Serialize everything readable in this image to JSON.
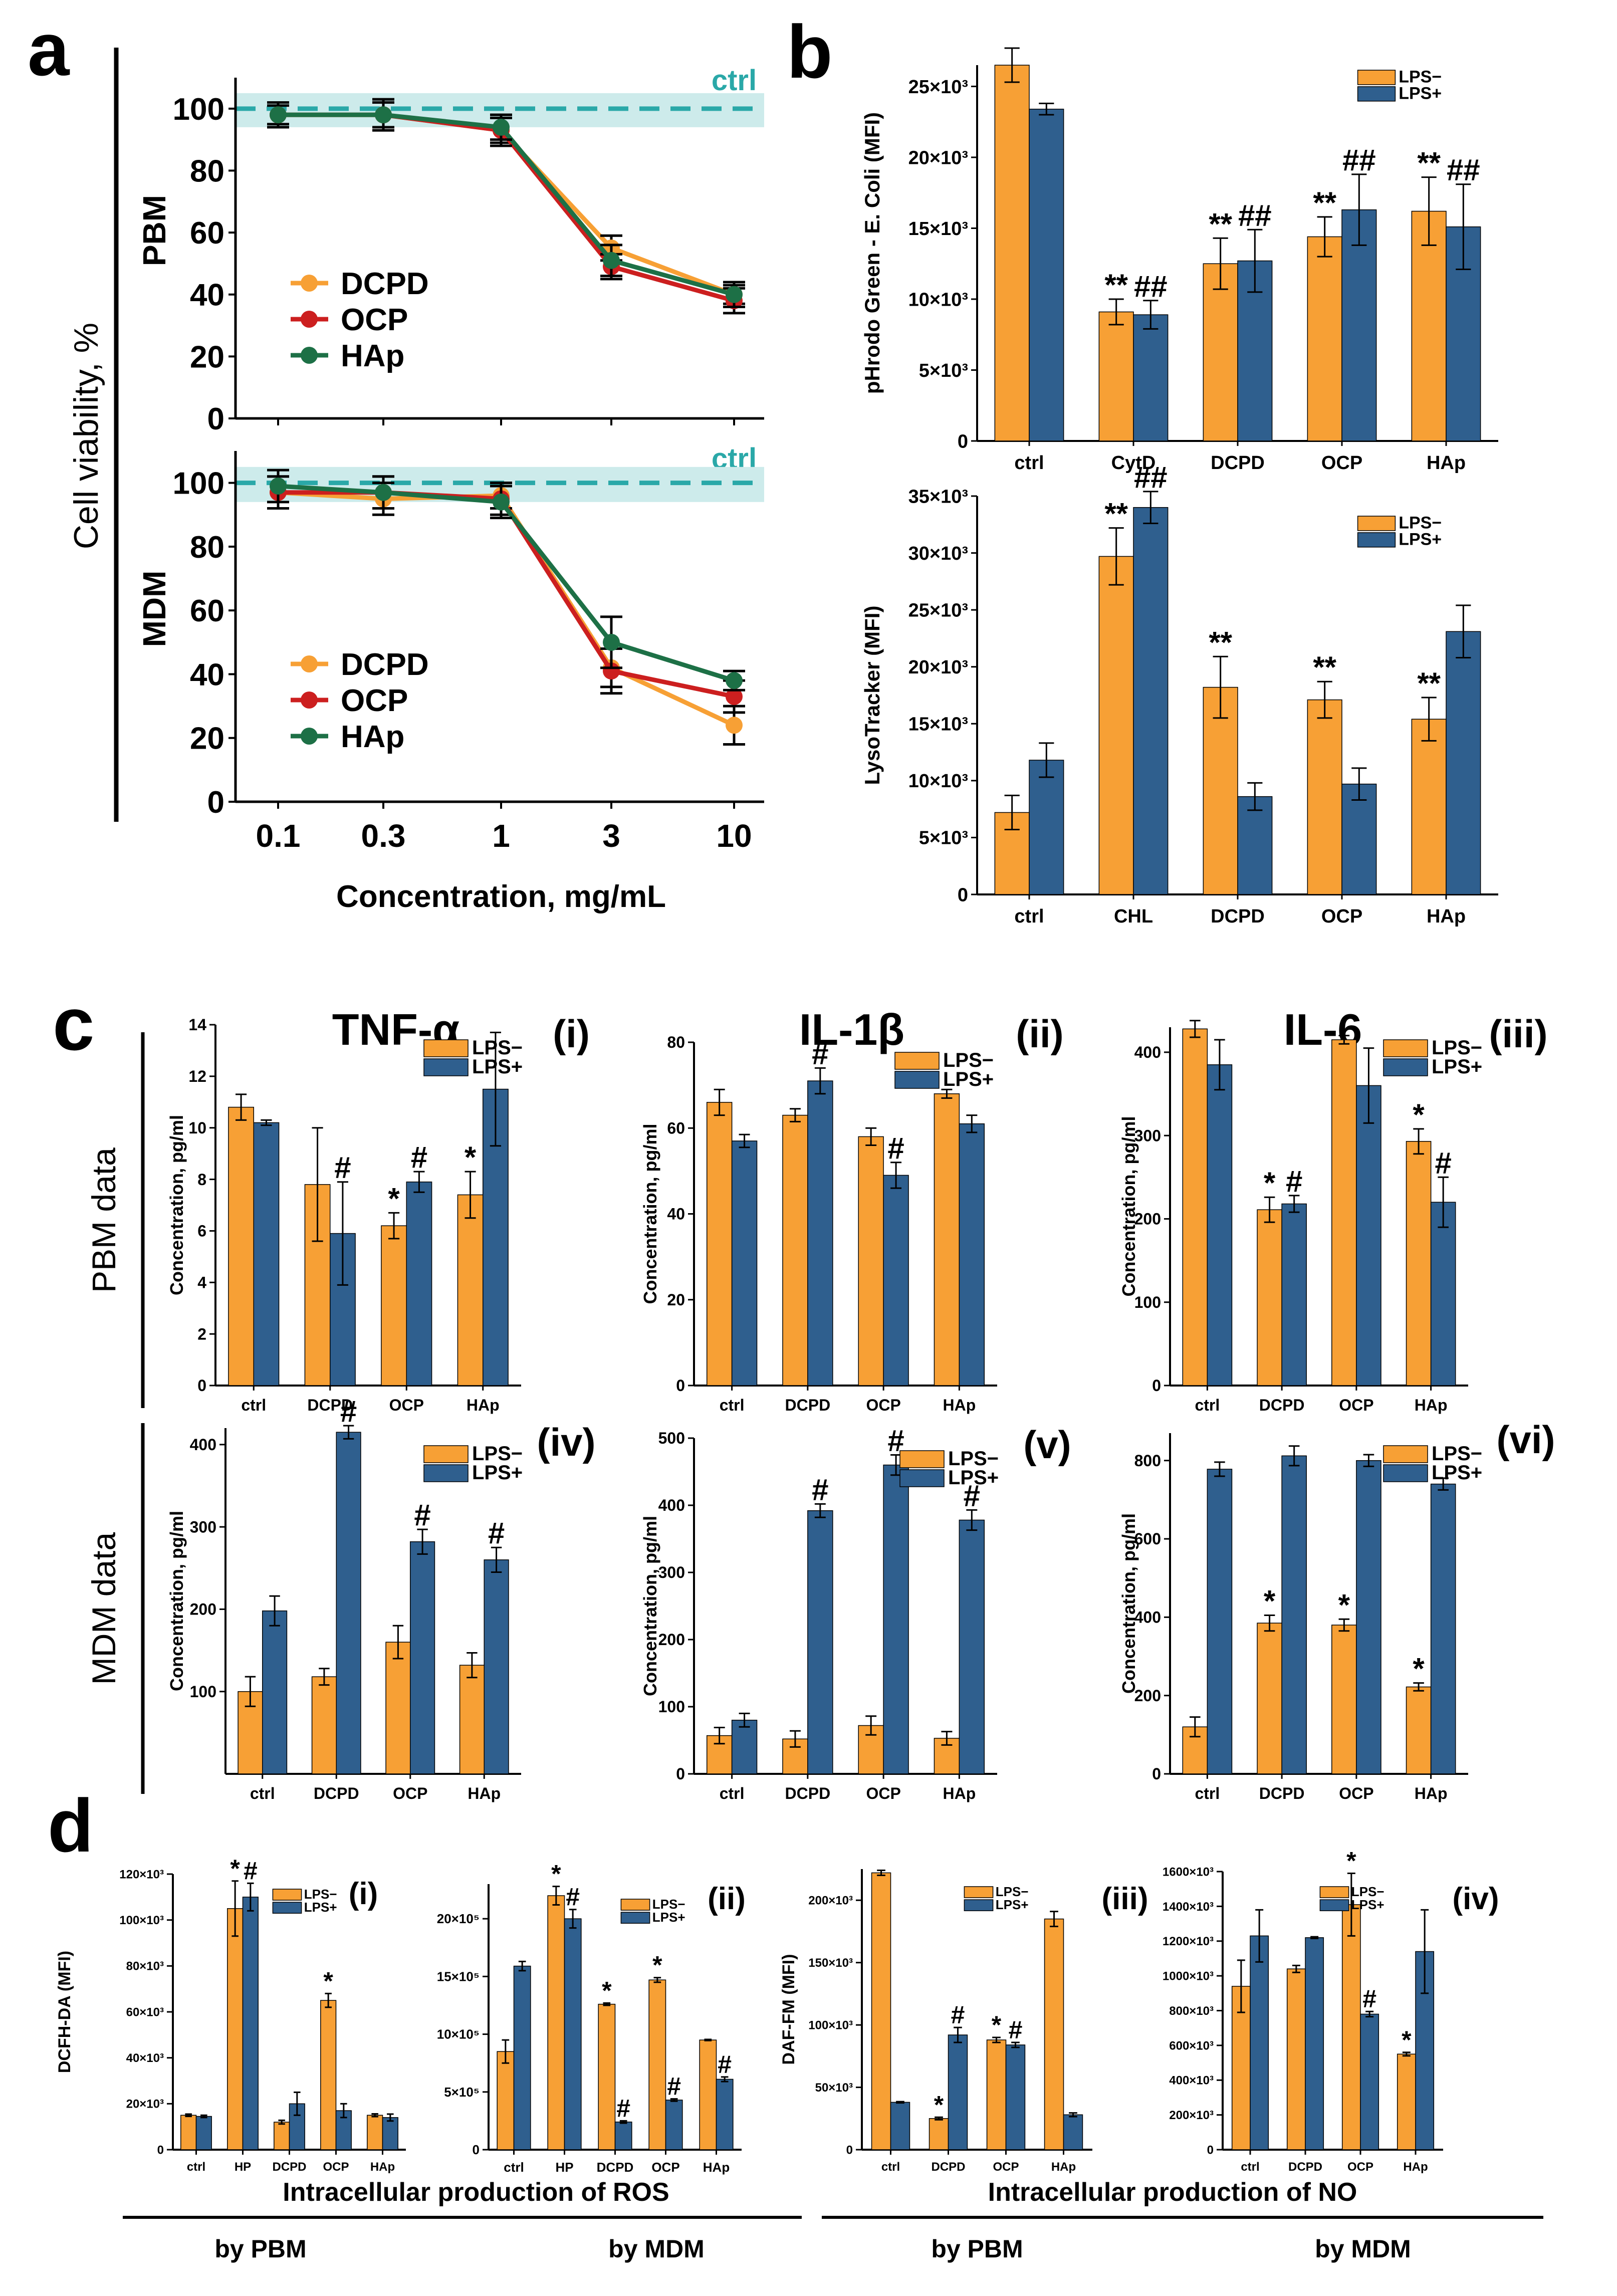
{
  "colors": {
    "orange": "#F7A035",
    "blue": "#2F5F8E",
    "red": "#CC1F1F",
    "green": "#1D7046",
    "teal": "#2AA8A8",
    "band": "#CDEBEB",
    "axis": "#000000"
  },
  "panel_labels": {
    "a": "a",
    "b": "b",
    "c": "c",
    "d": "d"
  },
  "panel_a": {
    "ylabel": "Cell viability, %",
    "xlabel": "Concentration, mg/mL",
    "ctrl_label": "ctrl",
    "x_ticks": [
      "0.1",
      "0.3",
      "1",
      "3",
      "10"
    ],
    "y_ticks": [
      "0",
      "20",
      "40",
      "60",
      "80",
      "100"
    ],
    "rows": [
      {
        "name": "PBM",
        "legend": [
          "DCPD",
          "OCP",
          "HAp"
        ]
      },
      {
        "name": "MDM",
        "legend": [
          "DCPD",
          "OCP",
          "HAp"
        ]
      }
    ]
  },
  "panel_c": {
    "titles": [
      "TNF-α",
      "IL-1β",
      "IL-6"
    ],
    "row_labels": [
      "PBM data",
      "MDM data"
    ]
  },
  "panel_d": {
    "captions": [
      "Intracellular production of ROS",
      "Intracellular production of NO"
    ],
    "sub_captions": [
      "by PBM",
      "by MDM",
      "by PBM",
      "by MDM"
    ]
  },
  "chart_data": [
    {
      "id": "a-PBM",
      "type": "line",
      "title": "",
      "xlabel": "Concentration, mg/mL",
      "ylabel": "PBM",
      "x": [
        0.1,
        0.3,
        1,
        3,
        10
      ],
      "ylim": [
        0,
        110
      ],
      "control": 100,
      "series": [
        {
          "name": "DCPD",
          "values": [
            98,
            98,
            93,
            55,
            40
          ],
          "err": [
            3,
            4,
            4,
            4,
            3
          ]
        },
        {
          "name": "OCP",
          "values": [
            98,
            98,
            93,
            49,
            38
          ],
          "err": [
            4,
            5,
            5,
            4,
            4
          ]
        },
        {
          "name": "HAp",
          "values": [
            98,
            98,
            94,
            51,
            40
          ],
          "err": [
            4,
            5,
            4,
            5,
            4
          ]
        }
      ]
    },
    {
      "id": "a-MDM",
      "type": "line",
      "title": "",
      "xlabel": "Concentration, mg/mL",
      "ylabel": "MDM",
      "x": [
        0.1,
        0.3,
        1,
        3,
        10
      ],
      "ylim": [
        0,
        110
      ],
      "control": 100,
      "series": [
        {
          "name": "DCPD",
          "values": [
            97,
            95,
            96,
            42,
            24
          ],
          "err": [
            5,
            5,
            4,
            6,
            6
          ]
        },
        {
          "name": "OCP",
          "values": [
            97,
            97,
            95,
            41,
            33
          ],
          "err": [
            5,
            5,
            5,
            7,
            5
          ]
        },
        {
          "name": "HAp",
          "values": [
            99,
            97,
            94,
            50,
            38
          ],
          "err": [
            5,
            5,
            5,
            8,
            3
          ]
        }
      ]
    },
    {
      "id": "b1",
      "type": "bar",
      "title": "",
      "ylabel": "pHrodo Green - E. Coli (MFI)",
      "categories": [
        "ctrl",
        "CytD",
        "DCPD",
        "OCP",
        "HAp"
      ],
      "ylim": [
        0,
        26500
      ],
      "yticks": [
        0,
        5000,
        10000,
        15000,
        20000,
        25000
      ],
      "ytick_labels": [
        "0",
        "5×10³",
        "10×10³",
        "15×10³",
        "20×10³",
        "25×10³"
      ],
      "legend": [
        "LPS−",
        "LPS+"
      ],
      "series": [
        {
          "name": "LPS−",
          "values": [
            26500,
            9100,
            12500,
            14400,
            16200
          ],
          "err": [
            1200,
            900,
            1800,
            1400,
            2400
          ],
          "marks": [
            "",
            "**",
            "**",
            "**",
            "**"
          ]
        },
        {
          "name": "LPS+",
          "values": [
            23400,
            8900,
            12700,
            16300,
            15100
          ],
          "err": [
            400,
            1000,
            2200,
            2500,
            3000
          ],
          "marks": [
            "",
            "##",
            "##",
            "##",
            "##"
          ]
        }
      ]
    },
    {
      "id": "b2",
      "type": "bar",
      "title": "",
      "ylabel": "LysoTracker (MFI)",
      "categories": [
        "ctrl",
        "CHL",
        "DCPD",
        "OCP",
        "HAp"
      ],
      "ylim": [
        0,
        35000
      ],
      "yticks": [
        0,
        5000,
        10000,
        15000,
        20000,
        25000,
        30000,
        35000
      ],
      "ytick_labels": [
        "0",
        "5×10³",
        "10×10³",
        "15×10³",
        "20×10³",
        "25×10³",
        "30×10³",
        "35×10³"
      ],
      "legend": [
        "LPS−",
        "LPS+"
      ],
      "series": [
        {
          "name": "LPS−",
          "values": [
            7200,
            29700,
            18200,
            17100,
            15400
          ],
          "err": [
            1500,
            2500,
            2700,
            1600,
            1900
          ],
          "marks": [
            "",
            "**",
            "**",
            "**",
            "**"
          ]
        },
        {
          "name": "LPS+",
          "values": [
            11800,
            34000,
            8600,
            9700,
            23100
          ],
          "err": [
            1500,
            1400,
            1200,
            1400,
            2300
          ],
          "marks": [
            "",
            "##",
            "",
            "",
            ""
          ]
        }
      ]
    },
    {
      "id": "c-i",
      "type": "bar",
      "title": "TNF-α",
      "tag": "(i)",
      "ylabel": "Concentration, pg/ml",
      "categories": [
        "ctrl",
        "DCPD",
        "OCP",
        "HAp"
      ],
      "ylim": [
        0,
        14
      ],
      "yticks": [
        0,
        2,
        4,
        6,
        8,
        10,
        12,
        14
      ],
      "ytick_labels": [
        "0",
        "2",
        "4",
        "6",
        "8",
        "10",
        "12",
        "14"
      ],
      "legend": [
        "LPS−",
        "LPS+"
      ],
      "series": [
        {
          "name": "LPS−",
          "values": [
            10.8,
            7.8,
            6.2,
            7.4
          ],
          "err": [
            0.5,
            2.2,
            0.5,
            0.9
          ],
          "marks": [
            "",
            "",
            "*",
            "*"
          ]
        },
        {
          "name": "LPS+",
          "values": [
            10.2,
            5.9,
            7.9,
            11.5
          ],
          "err": [
            0.1,
            2.0,
            0.4,
            2.2
          ],
          "marks": [
            "",
            "#",
            "#",
            ""
          ]
        }
      ]
    },
    {
      "id": "c-ii",
      "type": "bar",
      "title": "IL-1β",
      "tag": "(ii)",
      "ylabel": "Concentration, pg/ml",
      "categories": [
        "ctrl",
        "DCPD",
        "OCP",
        "HAp"
      ],
      "ylim": [
        0,
        80
      ],
      "yticks": [
        0,
        20,
        40,
        60,
        80
      ],
      "ytick_labels": [
        "0",
        "20",
        "40",
        "60",
        "80"
      ],
      "legend": [
        "LPS−",
        "LPS+"
      ],
      "series": [
        {
          "name": "LPS−",
          "values": [
            66,
            63,
            58,
            68
          ],
          "err": [
            3,
            1.5,
            2,
            1
          ],
          "marks": [
            "",
            "",
            "",
            ""
          ]
        },
        {
          "name": "LPS+",
          "values": [
            57,
            71,
            49,
            61
          ],
          "err": [
            1.5,
            3,
            3,
            2
          ],
          "marks": [
            "",
            "#",
            "#",
            ""
          ]
        }
      ]
    },
    {
      "id": "c-iii",
      "type": "bar",
      "title": "IL-6",
      "tag": "(iii)",
      "ylabel": "Concentration, pg/ml",
      "categories": [
        "ctrl",
        "DCPD",
        "OCP",
        "HAp"
      ],
      "ylim": [
        0,
        430
      ],
      "yticks": [
        0,
        100,
        200,
        300,
        400
      ],
      "ytick_labels": [
        "0",
        "100",
        "200",
        "300",
        "400"
      ],
      "legend": [
        "LPS−",
        "LPS+"
      ],
      "series": [
        {
          "name": "LPS−",
          "values": [
            428,
            211,
            415,
            293
          ],
          "err": [
            10,
            15,
            5,
            15
          ],
          "marks": [
            "",
            "*",
            "",
            "*"
          ]
        },
        {
          "name": "LPS+",
          "values": [
            385,
            218,
            360,
            220
          ],
          "err": [
            30,
            10,
            45,
            30
          ],
          "marks": [
            "",
            "#",
            "",
            "#"
          ]
        }
      ]
    },
    {
      "id": "c-iv",
      "type": "bar",
      "title": "",
      "tag": "(iv)",
      "ylabel": "Concentration, pg/ml",
      "categories": [
        "ctrl",
        "DCPD",
        "OCP",
        "HAp"
      ],
      "ylim": [
        0,
        420
      ],
      "yticks": [
        100,
        200,
        300,
        400
      ],
      "ytick_labels": [
        "100",
        "200",
        "300",
        "400"
      ],
      "legend": [
        "LPS−",
        "LPS+"
      ],
      "series": [
        {
          "name": "LPS−",
          "values": [
            100,
            118,
            160,
            132
          ],
          "err": [
            18,
            10,
            20,
            15
          ],
          "marks": [
            "",
            "",
            "",
            ""
          ]
        },
        {
          "name": "LPS+",
          "values": [
            198,
            415,
            282,
            260
          ],
          "err": [
            18,
            8,
            15,
            15
          ],
          "marks": [
            "",
            "#",
            "#",
            "#"
          ]
        }
      ]
    },
    {
      "id": "c-v",
      "type": "bar",
      "title": "",
      "tag": "(v)",
      "ylabel": "Concentration, pg/ml",
      "categories": [
        "ctrl",
        "DCPD",
        "OCP",
        "HAp"
      ],
      "ylim": [
        0,
        500
      ],
      "yticks": [
        0,
        100,
        200,
        300,
        400,
        500
      ],
      "ytick_labels": [
        "0",
        "100",
        "200",
        "300",
        "400",
        "500"
      ],
      "legend": [
        "LPS−",
        "LPS+"
      ],
      "series": [
        {
          "name": "LPS−",
          "values": [
            57,
            52,
            72,
            53
          ],
          "err": [
            12,
            12,
            14,
            10
          ],
          "marks": [
            "",
            "",
            "",
            ""
          ]
        },
        {
          "name": "LPS+",
          "values": [
            80,
            392,
            460,
            378
          ],
          "err": [
            10,
            10,
            15,
            15
          ],
          "marks": [
            "",
            "#",
            "#",
            "#"
          ]
        }
      ]
    },
    {
      "id": "c-vi",
      "type": "bar",
      "title": "",
      "tag": "(vi)",
      "ylabel": "Concentration, pg/ml",
      "categories": [
        "ctrl",
        "DCPD",
        "OCP",
        "HAp"
      ],
      "ylim": [
        0,
        870
      ],
      "yticks": [
        0,
        200,
        400,
        600,
        800
      ],
      "ytick_labels": [
        "0",
        "200",
        "400",
        "600",
        "800"
      ],
      "legend": [
        "LPS−",
        "LPS+"
      ],
      "series": [
        {
          "name": "LPS−",
          "values": [
            120,
            385,
            380,
            222
          ],
          "err": [
            25,
            20,
            15,
            10
          ],
          "marks": [
            "",
            "*",
            "*",
            "*"
          ]
        },
        {
          "name": "LPS+",
          "values": [
            778,
            812,
            800,
            740
          ],
          "err": [
            18,
            25,
            15,
            15
          ],
          "marks": [
            "",
            "",
            "",
            ""
          ]
        }
      ]
    },
    {
      "id": "d-i",
      "type": "bar",
      "title": "",
      "tag": "(i)",
      "ylabel": "DCFH-DA (MFI)",
      "categories": [
        "ctrl",
        "HP",
        "DCPD",
        "OCP",
        "HAp"
      ],
      "ylim": [
        0,
        120000
      ],
      "yticks": [
        0,
        20000,
        40000,
        60000,
        80000,
        100000,
        120000
      ],
      "ytick_labels": [
        "0",
        "20×10³",
        "40×10³",
        "60×10³",
        "80×10³",
        "100×10³",
        "120×10³"
      ],
      "legend": [
        "LPS−",
        "LPS+"
      ],
      "series": [
        {
          "name": "LPS−",
          "values": [
            15000,
            105000,
            12000,
            65000,
            15000
          ],
          "err": [
            500,
            12000,
            800,
            3000,
            600
          ],
          "marks": [
            "",
            "*",
            "",
            "*",
            ""
          ]
        },
        {
          "name": "LPS+",
          "values": [
            14500,
            110000,
            20000,
            17000,
            14000
          ],
          "err": [
            500,
            6000,
            5000,
            3000,
            1500
          ],
          "marks": [
            "",
            "#",
            "",
            "",
            ""
          ]
        }
      ]
    },
    {
      "id": "d-ii",
      "type": "bar",
      "title": "",
      "tag": "(ii)",
      "ylabel": "",
      "categories": [
        "ctrl",
        "HP",
        "DCPD",
        "OCP",
        "HAp"
      ],
      "ylim": [
        0,
        2300000
      ],
      "yticks": [
        0,
        500000,
        1000000,
        1500000,
        2000000
      ],
      "ytick_labels": [
        "0",
        "5×10⁵",
        "10×10⁵",
        "15×10⁵",
        "20×10⁵"
      ],
      "legend": [
        "LPS−",
        "LPS+"
      ],
      "series": [
        {
          "name": "LPS−",
          "values": [
            850000,
            2200000,
            1260000,
            1470000,
            950000
          ],
          "err": [
            100000,
            80000,
            10000,
            20000,
            5000
          ],
          "marks": [
            "",
            "*",
            "*",
            "*",
            ""
          ]
        },
        {
          "name": "LPS+",
          "values": [
            1590000,
            2000000,
            240000,
            430000,
            610000
          ],
          "err": [
            40000,
            80000,
            10000,
            10000,
            20000
          ],
          "marks": [
            "",
            "#",
            "#",
            "#",
            "#"
          ]
        }
      ]
    },
    {
      "id": "d-iii",
      "type": "bar",
      "title": "",
      "tag": "(iii)",
      "ylabel": "DAF-FM (MFI)",
      "categories": [
        "ctrl",
        "DCPD",
        "OCP",
        "HAp"
      ],
      "ylim": [
        0,
        225000
      ],
      "yticks": [
        0,
        50000,
        100000,
        150000,
        200000
      ],
      "ytick_labels": [
        "0",
        "50×10³",
        "100×10³",
        "150×10³",
        "200×10³"
      ],
      "legend": [
        "LPS−",
        "LPS+"
      ],
      "series": [
        {
          "name": "LPS−",
          "values": [
            222000,
            25000,
            88000,
            185000
          ],
          "err": [
            2000,
            1000,
            2000,
            6000
          ],
          "marks": [
            "",
            "*",
            "*",
            ""
          ]
        },
        {
          "name": "LPS+",
          "values": [
            38000,
            92000,
            84000,
            28000
          ],
          "err": [
            500,
            6000,
            2000,
            1500
          ],
          "marks": [
            "",
            "#",
            "#",
            ""
          ]
        }
      ]
    },
    {
      "id": "d-iv",
      "type": "bar",
      "title": "",
      "tag": "(iv)",
      "ylabel": "",
      "categories": [
        "ctrl",
        "DCPD",
        "OCP",
        "HAp"
      ],
      "ylim": [
        0,
        1600000
      ],
      "yticks": [
        0,
        200000,
        400000,
        600000,
        800000,
        1000000,
        1200000,
        1400000,
        1600000
      ],
      "ytick_labels": [
        "0",
        "200×10³",
        "400×10³",
        "600×10³",
        "800×10³",
        "1000×10³",
        "1200×10³",
        "1400×10³",
        "1600×10³"
      ],
      "legend": [
        "LPS−",
        "LPS+"
      ],
      "series": [
        {
          "name": "LPS−",
          "values": [
            940000,
            1040000,
            1410000,
            550000
          ],
          "err": [
            150000,
            20000,
            180000,
            10000
          ],
          "marks": [
            "",
            "",
            "*",
            "*"
          ]
        },
        {
          "name": "LPS+",
          "values": [
            1230000,
            1220000,
            780000,
            1140000
          ],
          "err": [
            150000,
            5000,
            15000,
            240000
          ],
          "marks": [
            "",
            "",
            "#",
            ""
          ]
        }
      ]
    }
  ]
}
